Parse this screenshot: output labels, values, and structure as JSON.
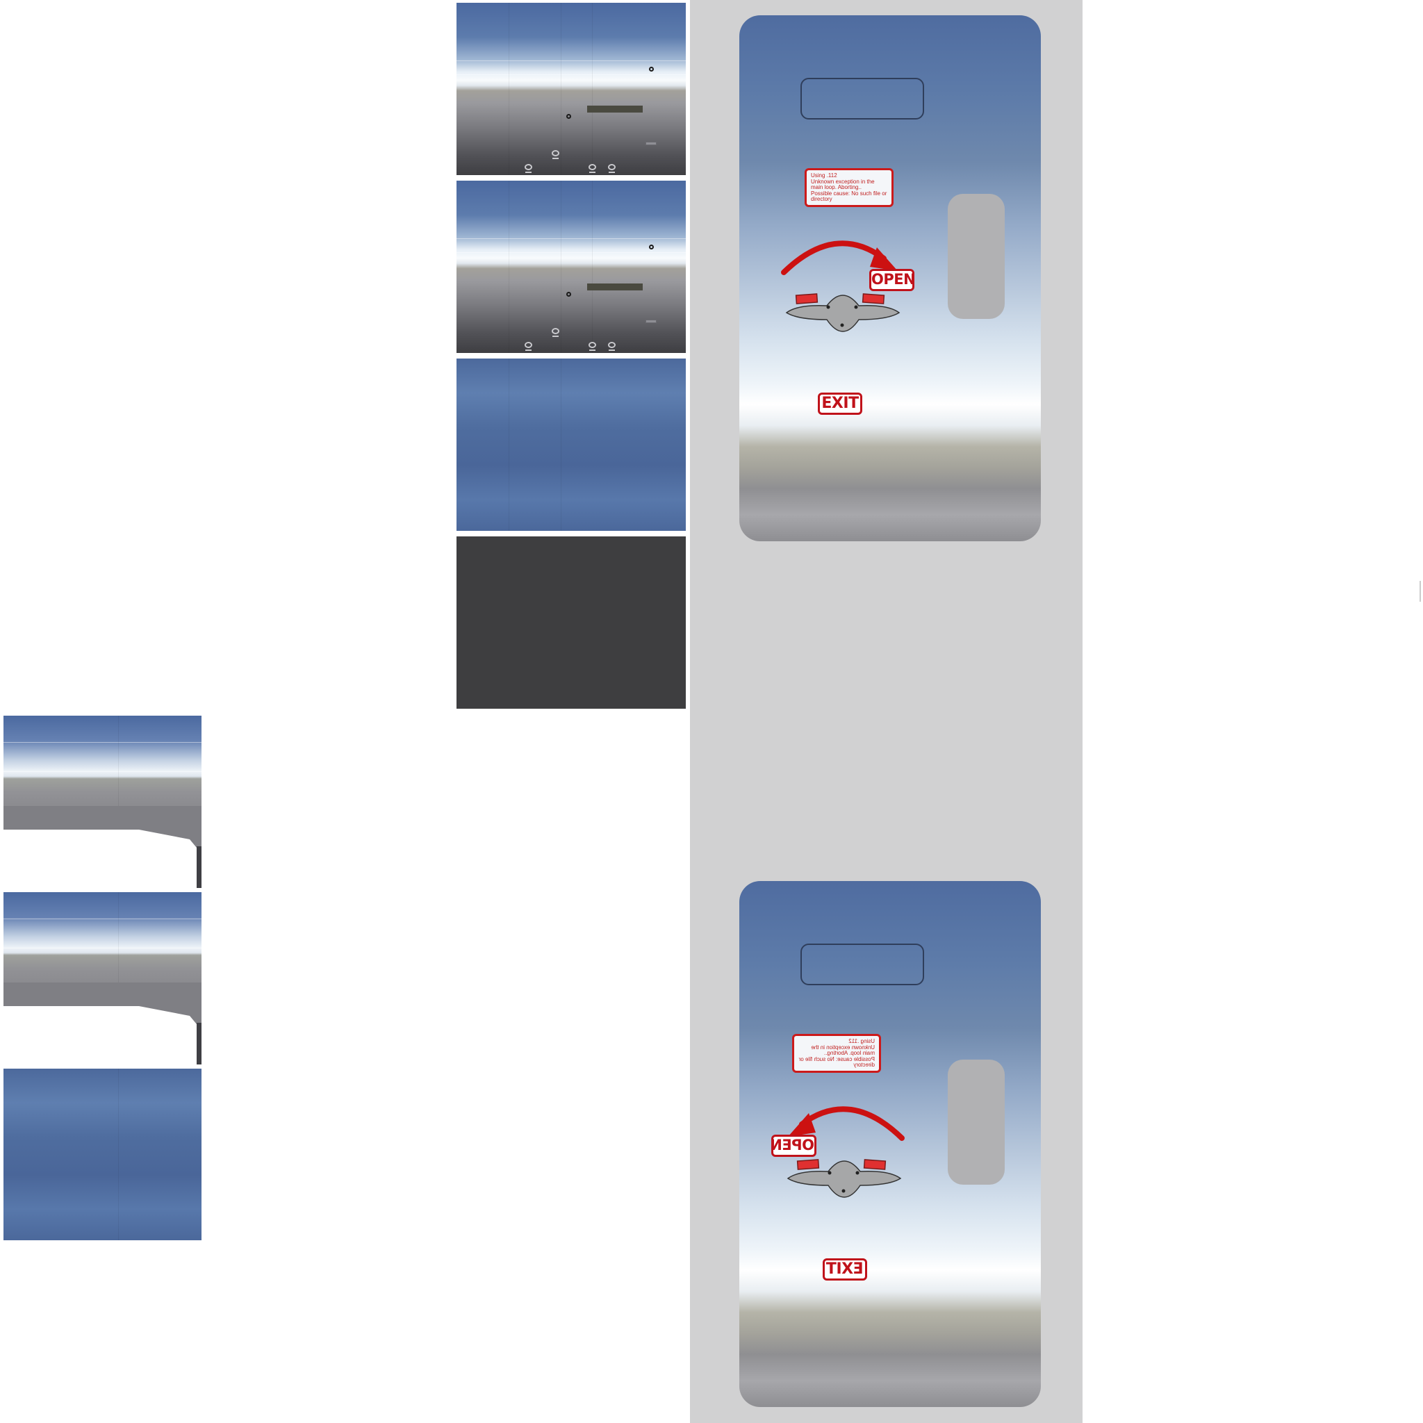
{
  "door_top": {
    "warning_text": "Using .112\nUnknown exception in the main loop. Aborting..\nPossible cause: No such file or directory",
    "open_label": "OPEN",
    "exit_label": "EXIT"
  },
  "door_bottom": {
    "warning_text": "Using .112\nUnknown exception in the main loop. Aborting..\nPossible cause: No such file or directory",
    "open_label": "OPEN",
    "exit_label": "EXIT"
  },
  "colors": {
    "fuselage_blue": "#4b69a0",
    "fuselage_white": "#f9fbfd",
    "fuselage_grey": "#7b7b80",
    "panel_dark": "#3e3e40",
    "door_strip": "#d1d1d2",
    "warning_red": "#c0121a"
  }
}
